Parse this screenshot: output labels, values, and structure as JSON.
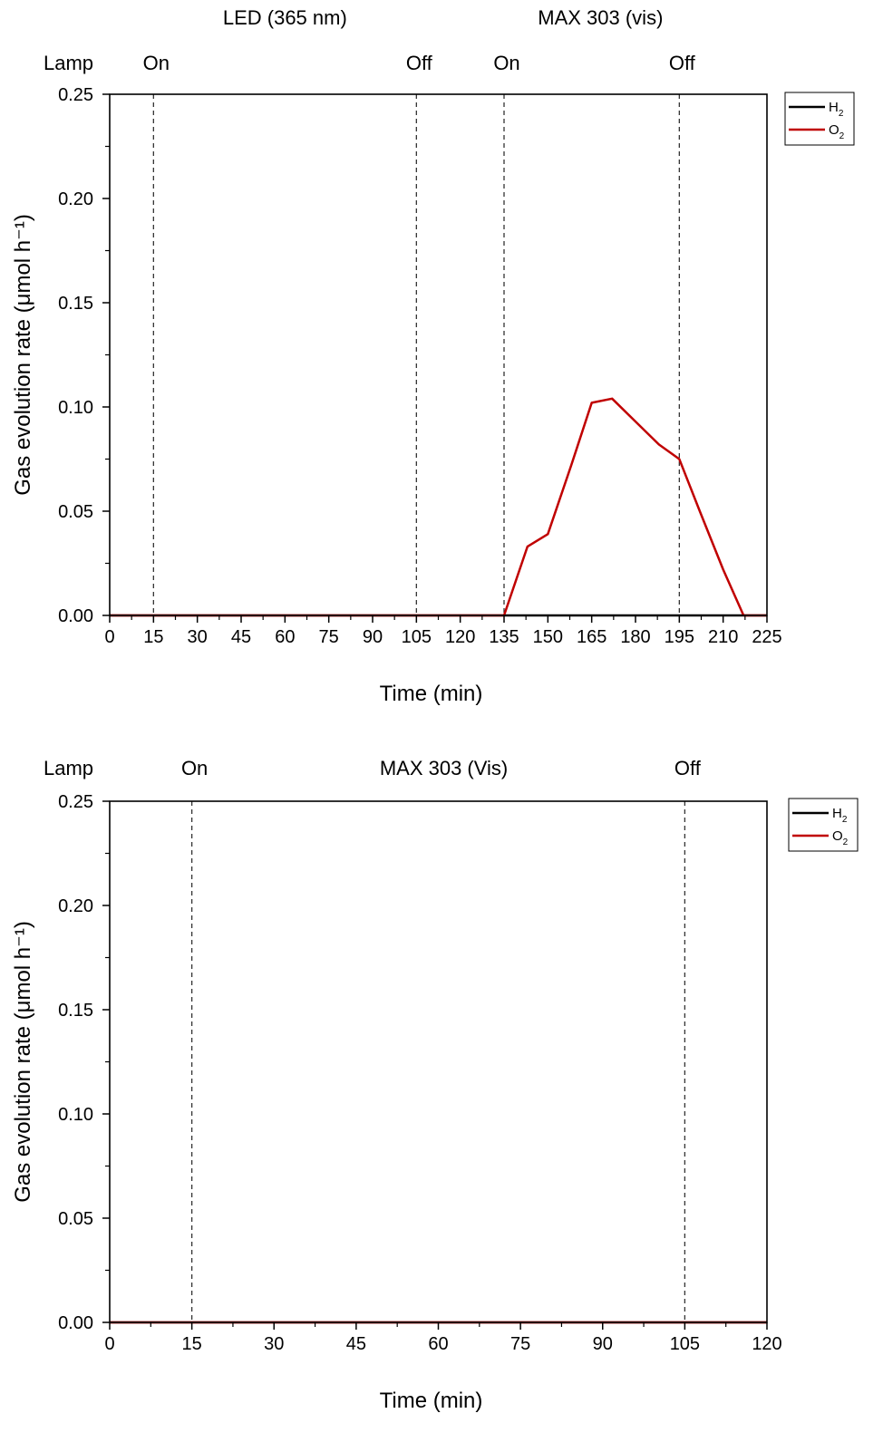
{
  "chart_data": [
    {
      "type": "line",
      "xlabel": "Time (min)",
      "ylabel": "Gas evolution rate (μmol h⁻¹)",
      "xlim": [
        0,
        225
      ],
      "ylim": [
        0,
        0.25
      ],
      "xticks": [
        "0",
        "15",
        "30",
        "45",
        "60",
        "75",
        "90",
        "105",
        "120",
        "135",
        "150",
        "165",
        "180",
        "195",
        "210",
        "225"
      ],
      "yticks": [
        "0.00",
        "0.05",
        "0.10",
        "0.15",
        "0.20",
        "0.25"
      ],
      "lamp_label": "Lamp",
      "source_labels": [
        {
          "text": "LED (365 nm)",
          "x": 60
        },
        {
          "text": "MAX 303 (vis)",
          "x": 168
        }
      ],
      "lamp_events": [
        {
          "x": 15,
          "label": "On"
        },
        {
          "x": 105,
          "label": "Off"
        },
        {
          "x": 135,
          "label": "On"
        },
        {
          "x": 195,
          "label": "Off"
        }
      ],
      "legend": [
        {
          "main": "H",
          "sub": "2",
          "color": "#000000"
        },
        {
          "main": "O",
          "sub": "2",
          "color": "#c00000"
        }
      ],
      "legend_placement": "outside-right-top",
      "series": [
        {
          "name": "H2",
          "color": "#000000",
          "x": [
            0,
            225
          ],
          "values": [
            0,
            0
          ]
        },
        {
          "name": "O2",
          "color": "#c00000",
          "x": [
            0,
            135,
            143,
            150,
            158,
            165,
            172,
            180,
            188,
            195,
            202,
            210,
            217,
            225
          ],
          "values": [
            0,
            0,
            0.033,
            0.039,
            0.072,
            0.102,
            0.104,
            0.093,
            0.082,
            0.075,
            0.05,
            0.022,
            0,
            0
          ]
        }
      ]
    },
    {
      "type": "line",
      "xlabel": "Time (min)",
      "ylabel": "Gas evolution rate (μmol h⁻¹)",
      "xlim": [
        0,
        120
      ],
      "ylim": [
        0,
        0.25
      ],
      "xticks": [
        "0",
        "15",
        "30",
        "45",
        "60",
        "75",
        "90",
        "105",
        "120"
      ],
      "yticks": [
        "0.00",
        "0.05",
        "0.10",
        "0.15",
        "0.20",
        "0.25"
      ],
      "lamp_label": "Lamp",
      "source_labels": [
        {
          "text": "MAX 303 (Vis)",
          "x": 61
        }
      ],
      "lamp_events": [
        {
          "x": 15,
          "label": "On"
        },
        {
          "x": 105,
          "label": "Off"
        }
      ],
      "legend": [
        {
          "main": "H",
          "sub": "2",
          "color": "#000000"
        },
        {
          "main": "O",
          "sub": "2",
          "color": "#c00000"
        }
      ],
      "legend_placement": "outside-right-top",
      "series": [
        {
          "name": "H2",
          "color": "#000000",
          "x": [
            0,
            120
          ],
          "values": [
            0,
            0
          ]
        },
        {
          "name": "O2",
          "color": "#c00000",
          "x": [
            0,
            120
          ],
          "values": [
            0,
            0
          ]
        }
      ]
    }
  ]
}
